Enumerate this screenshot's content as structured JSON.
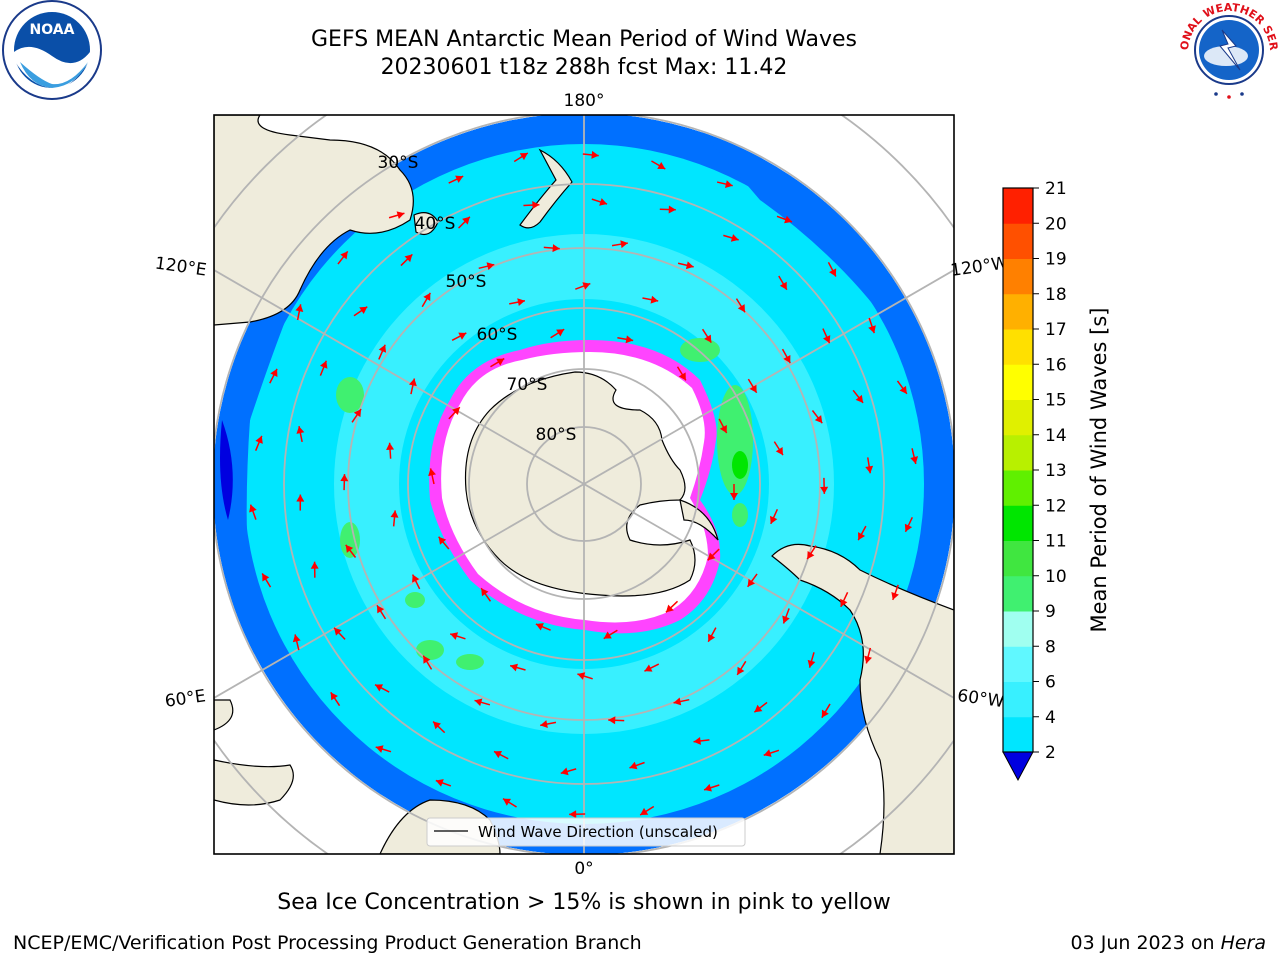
{
  "header": {
    "title_line1": "GEFS MEAN Antarctic Mean Period of Wind Waves",
    "title_line2": "20230601 t18z 288h fcst   Max: 11.42"
  },
  "logos": {
    "left": "noaa-logo",
    "left_text": "NOAA",
    "right": "national-weather-service-logo",
    "right_text": "NATIONAL WEATHER SERVICE"
  },
  "map": {
    "projection": "south-polar-stereographic",
    "longitude_labels": {
      "top": "180°",
      "bottom": "0°",
      "upper_left": "120°E",
      "lower_left": "60°E",
      "upper_right": "120°W",
      "lower_right": "60°W"
    },
    "latitude_labels": [
      "30°S",
      "40°S",
      "50°S",
      "60°S",
      "70°S",
      "80°S"
    ],
    "legend_label": "Wind Wave Direction (unscaled)",
    "arrow_color": "#ff0000",
    "land_color": "#efecdc",
    "ice_colors": [
      "#ff44ff",
      "#ff88aa",
      "#ffcc66",
      "#ffff66"
    ]
  },
  "colorbar": {
    "label": "Mean Period of Wind Waves [s]",
    "ticks": [
      "2",
      "4",
      "6",
      "8",
      "9",
      "10",
      "11",
      "12",
      "13",
      "14",
      "15",
      "16",
      "17",
      "18",
      "19",
      "20",
      "21"
    ],
    "colors": [
      "#0070ff",
      "#00e6ff",
      "#38f0ff",
      "#60f8ff",
      "#a0fff0",
      "#40f070",
      "#40e640",
      "#00e600",
      "#60f000",
      "#b8f000",
      "#e0f000",
      "#ffff00",
      "#ffe000",
      "#ffb000",
      "#ff8000",
      "#ff5000",
      "#ff2000",
      "#ff0000"
    ],
    "under_color": "#0000e0"
  },
  "footer": {
    "ice_note": "Sea Ice Concentration > 15% is shown in pink to yellow",
    "credit": "NCEP/EMC/Verification Post Processing Product Generation Branch",
    "date": "03 Jun 2023 on ",
    "host": "Hera"
  }
}
